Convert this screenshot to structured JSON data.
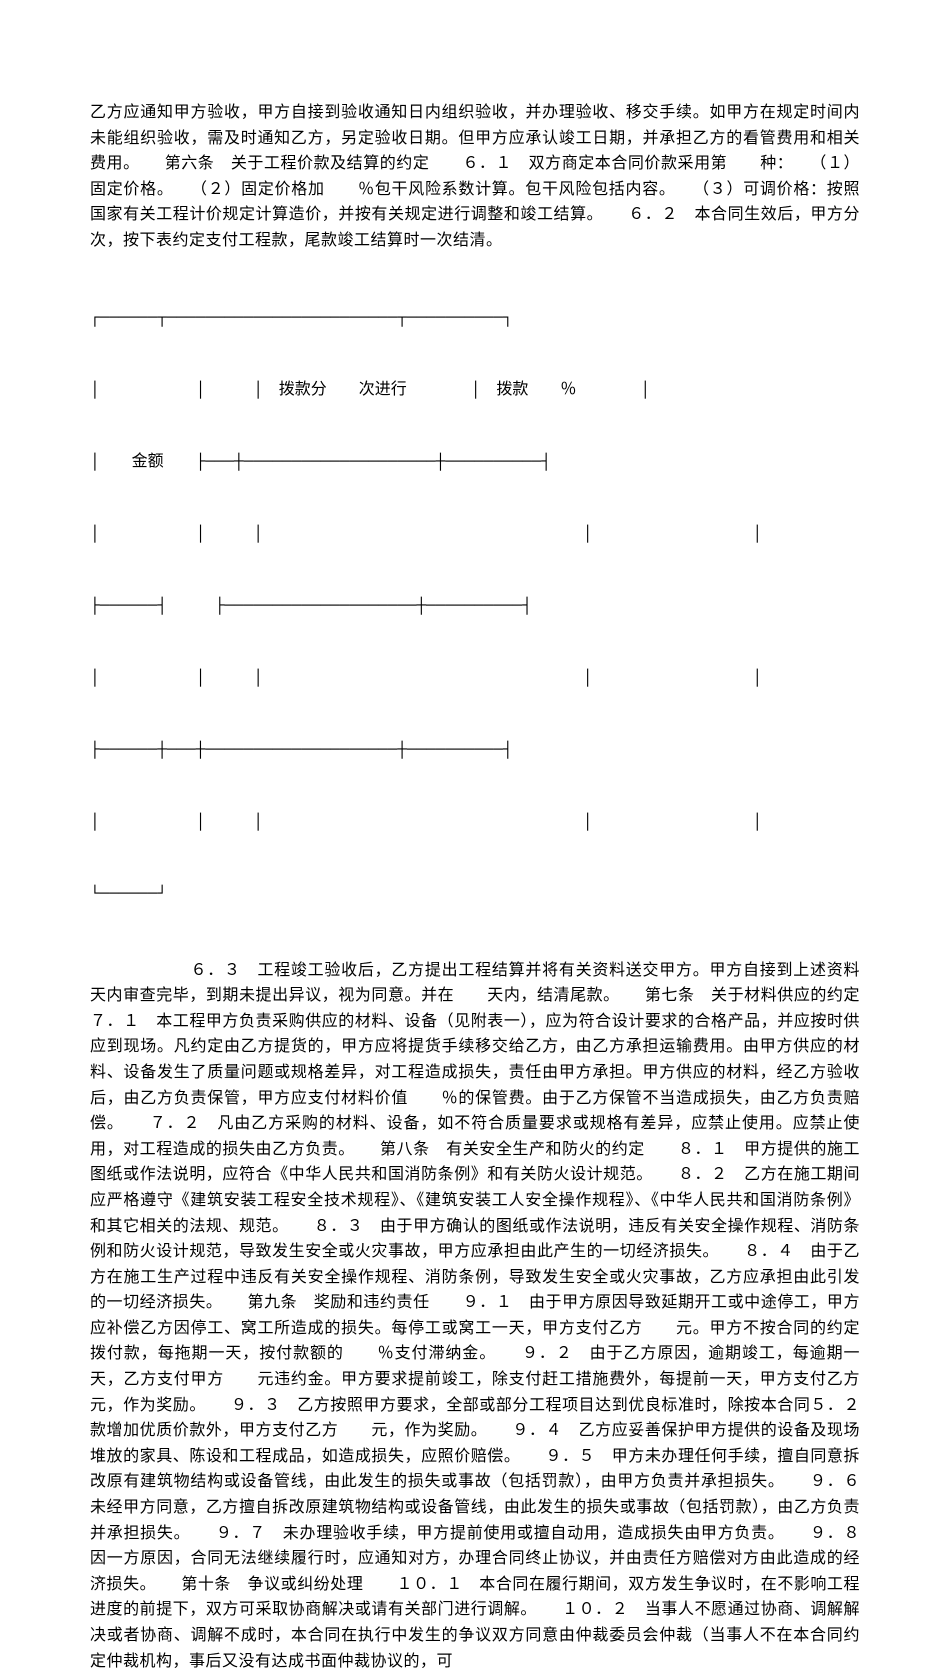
{
  "document": {
    "text_color": "#000000",
    "background_color": "#ffffff",
    "font_size": 16,
    "paragraphs": [
      "乙方应通知甲方验收，甲方自接到验收通知日内组织验收，并办理验收、移交手续。如甲方在规定时间内未能组织验收，需及时通知乙方，另定验收日期。但甲方应承认竣工日期，并承担乙方的看管费用和相关费用。　　第六条　关于工程价款及结算的约定　　６．１　双方商定本合同价款采用第　　种：　　（１）固定价格。　　（２）固定价格加　　％包干风险系数计算。包干风险包括内容。　　（３）可调价格：按照国家有关工程计价规定计算造价，并按有关规定进行调整和竣工结算。　　６．２　本合同生效后，甲方分次，按下表约定支付工程款，尾款竣工结算时一次结清。"
    ],
    "table": {
      "type": "text-table",
      "border_char": "─",
      "vertical_char": "│",
      "corner_chars": "┌┐└┘├┤┬┴┼",
      "headers": [
        "",
        "拨款分　　次进行",
        "拨款　　％"
      ],
      "row2_label": "金额",
      "rows_count": 3
    },
    "paragraphs_after": [
      "　　　　　　６．３　工程竣工验收后，乙方提出工程结算并将有关资料送交甲方。甲方自接到上述资料　　天内审查完毕，到期未提出异议，视为同意。并在　　天内，结清尾款。　　第七条　关于材料供应的约定　　７．１　本工程甲方负责采购供应的材料、设备（见附表一），应为符合设计要求的合格产品，并应按时供应到现场。凡约定由乙方提货的，甲方应将提货手续移交给乙方，由乙方承担运输费用。由甲方供应的材料、设备发生了质量问题或规格差异，对工程造成损失，责任由甲方承担。甲方供应的材料，经乙方验收后，由乙方负责保管，甲方应支付材料价值　　％的保管费。由于乙方保管不当造成损失，由乙方负责赔偿。　　７．２　凡由乙方采购的材料、设备，如不符合质量要求或规格有差异，应禁止使用。应禁止使用，对工程造成的损失由乙方负责。　　第八条　有关安全生产和防火的约定　　８．１　甲方提供的施工图纸或作法说明，应符合《中华人民共和国消防条例》和有关防火设计规范。　　８．２　乙方在施工期间应严格遵守《建筑安装工程安全技术规程》、《建筑安装工人安全操作规程》、《中华人民共和国消防条例》和其它相关的法规、规范。　　８．３　由于甲方确认的图纸或作法说明，违反有关安全操作规程、消防条例和防火设计规范，导致发生安全或火灾事故，甲方应承担由此产生的一切经济损失。　　８．４　由于乙方在施工生产过程中违反有关安全操作规程、消防条例，导致发生安全或火灾事故，乙方应承担由此引发的一切经济损失。　　第九条　奖励和违约责任　　９．１　由于甲方原因导致延期开工或中途停工，甲方应补偿乙方因停工、窝工所造成的损失。每停工或窝工一天，甲方支付乙方　　元。甲方不按合同的约定拨付款，每拖期一天，按付款额的　　％支付滞纳金。　　９．２　由于乙方原因，逾期竣工，每逾期一天，乙方支付甲方　　元违约金。甲方要求提前竣工，除支付赶工措施费外，每提前一天，甲方支付乙方　　元，作为奖励。　　９．３　乙方按照甲方要求，全部或部分工程项目达到优良标准时，除按本合同５．２款增加优质价款外，甲方支付乙方　　元，作为奖励。　　９．４　乙方应妥善保护甲方提供的设备及现场堆放的家具、陈设和工程成品，如造成损失，应照价赔偿。　　９．５　甲方未办理任何手续，擅自同意拆改原有建筑物结构或设备管线，由此发生的损失或事故（包括罚款），由甲方负责并承担损失。　　９．６　未经甲方同意，乙方擅自拆改原建筑物结构或设备管线，由此发生的损失或事故（包括罚款），由乙方负责并承担损失。　　９．７　未办理验收手续，甲方提前使用或擅自动用，造成损失由甲方负责。　　９．８　因一方原因，合同无法继续履行时，应通知对方，办理合同终止协议，并由责任方赔偿对方由此造成的经济损失。　　第十条　争议或纠纷处理　　１０．１　本合同在履行期间，双方发生争议时，在不影响工程进度的前提下，双方可采取协商解决或请有关部门进行调解。　　１０．２　当事人不愿通过协商、调解解决或者协商、调解不成时，本合同在执行中发生的争议双方同意由仲裁委员会仲裁（当事人不在本合同约定仲裁机构，事后又没有达成书面仲裁协议的，可"
    ]
  }
}
